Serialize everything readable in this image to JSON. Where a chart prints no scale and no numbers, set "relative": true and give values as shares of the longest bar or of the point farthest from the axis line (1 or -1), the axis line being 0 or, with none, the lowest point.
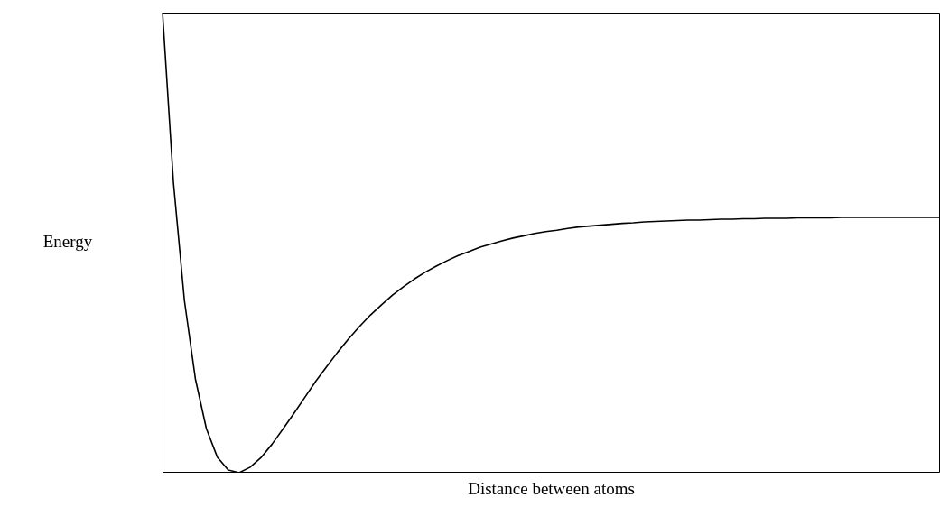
{
  "chart_data": {
    "type": "line",
    "relative": true,
    "xlabel": "Distance between atoms",
    "ylabel": "Energy",
    "legend": false,
    "marker": "none",
    "line_style": "solid",
    "categories": [
      null,
      null,
      null,
      null,
      null,
      null,
      null,
      null,
      null,
      null,
      null,
      null,
      null,
      null,
      null,
      null,
      null,
      null,
      null,
      null,
      null,
      null,
      null,
      null,
      null,
      null,
      null,
      null,
      null,
      null,
      null,
      null,
      null,
      null,
      null,
      null,
      null,
      null,
      null,
      null,
      null,
      null,
      null,
      null,
      null,
      null,
      null,
      null,
      null,
      null,
      null,
      null,
      null,
      null,
      null,
      null,
      null,
      null,
      null,
      null,
      null,
      null,
      null,
      null,
      null,
      null,
      null,
      null,
      null,
      null,
      null,
      null
    ],
    "series": [
      {
        "color": "#000000",
        "values": [
          1.0,
          0.63,
          0.374,
          0.204,
          0.096,
          0.034,
          0.006,
          0.0,
          0.012,
          0.033,
          0.062,
          0.095,
          0.129,
          0.164,
          0.199,
          0.231,
          0.262,
          0.291,
          0.318,
          0.343,
          0.365,
          0.386,
          0.404,
          0.421,
          0.436,
          0.449,
          0.461,
          0.472,
          0.481,
          0.49,
          0.497,
          0.504,
          0.51,
          0.515,
          0.52,
          0.524,
          0.527,
          0.531,
          0.534,
          0.536,
          0.538,
          0.54,
          0.542,
          0.543,
          0.545,
          0.546,
          0.547,
          0.548,
          0.549,
          0.549,
          0.55,
          0.551,
          0.551,
          0.552,
          0.552,
          0.553,
          0.553,
          0.553,
          0.554,
          0.554,
          0.554,
          0.554,
          0.555,
          0.555,
          0.555,
          0.555,
          0.555,
          0.555,
          0.555,
          0.555,
          0.555,
          0.555
        ]
      }
    ]
  }
}
